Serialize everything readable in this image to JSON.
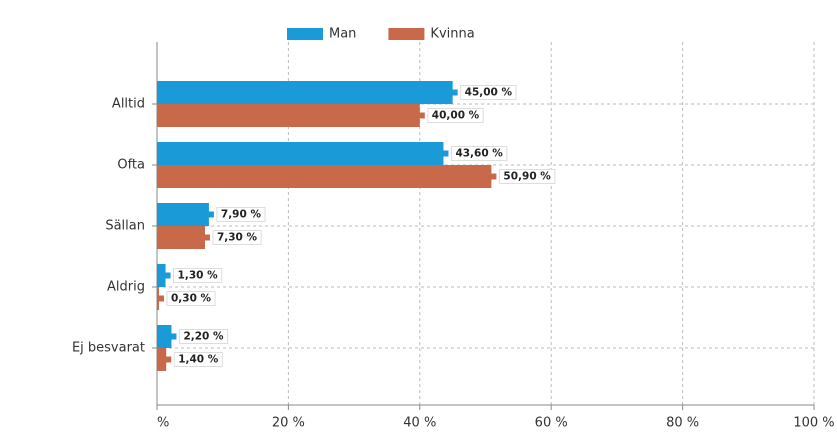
{
  "chart_data": {
    "type": "bar",
    "orientation": "horizontal",
    "categories": [
      "Alltid",
      "Ofta",
      "Sällan",
      "Aldrig",
      "Ej besvarat"
    ],
    "series": [
      {
        "name": "Man",
        "color": "#1a9ad6",
        "values": [
          45.0,
          43.6,
          7.9,
          1.3,
          2.2
        ],
        "value_labels": [
          "45,00 %",
          "43,60 %",
          "7,90 %",
          "1,30 %",
          "2,20 %"
        ]
      },
      {
        "name": "Kvinna",
        "color": "#c8694a",
        "values": [
          40.0,
          50.9,
          7.3,
          0.3,
          1.4
        ],
        "value_labels": [
          "40,00 %",
          "50,90 %",
          "7,30 %",
          "0,30 %",
          "1,40 %"
        ]
      }
    ],
    "xlim": [
      0,
      100
    ],
    "xticks": [
      {
        "value": 0,
        "label": "%"
      },
      {
        "value": 20,
        "label": "20 %"
      },
      {
        "value": 40,
        "label": "40 %"
      },
      {
        "value": 60,
        "label": "60 %"
      },
      {
        "value": 80,
        "label": "80 %"
      },
      {
        "value": 100,
        "label": "100 %"
      }
    ],
    "grid": true,
    "legend": "top"
  }
}
